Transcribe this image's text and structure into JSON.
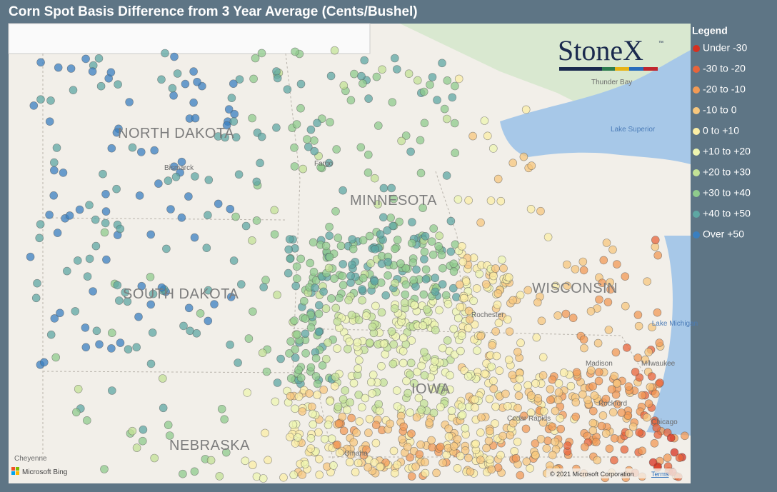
{
  "header": {
    "title": "Corn Spot Basis Difference from 3 Year Average (Cents/Bushel)"
  },
  "logo": {
    "text": "StoneX",
    "mark": "™"
  },
  "legend": {
    "title": "Legend",
    "items": [
      {
        "label": "Under -30",
        "color": "#d7301f"
      },
      {
        "label": "-30 to -20",
        "color": "#e8643a"
      },
      {
        "label": "-20 to -10",
        "color": "#f29a55"
      },
      {
        "label": "-10 to 0",
        "color": "#f7c77e"
      },
      {
        "label": "0 to +10",
        "color": "#fbeea5"
      },
      {
        "label": "+10 to +20",
        "color": "#eef5b0"
      },
      {
        "label": "+20 to +30",
        "color": "#c3e296"
      },
      {
        "label": "+30 to +40",
        "color": "#8fcb8c"
      },
      {
        "label": "+40 to +50",
        "color": "#5ea7a3"
      },
      {
        "label": "Over +50",
        "color": "#3a7fc0"
      }
    ]
  },
  "map": {
    "states": [
      "NORTH DAKOTA",
      "SOUTH DAKOTA",
      "MINNESOTA",
      "WISCONSIN",
      "IOWA",
      "NEBRASKA"
    ],
    "places": [
      "Bismarck",
      "Fargo",
      "Thunder Bay",
      "Lake Superior",
      "Lake Michigan",
      "Milwaukee",
      "Madison",
      "Chicago",
      "Rockford",
      "Omaha",
      "Cheyenne",
      "Rochester",
      "Cedar Rapids"
    ],
    "attribution": "© 2021 Microsoft Corporation",
    "terms": "Terms",
    "provider": "Microsoft Bing"
  }
}
